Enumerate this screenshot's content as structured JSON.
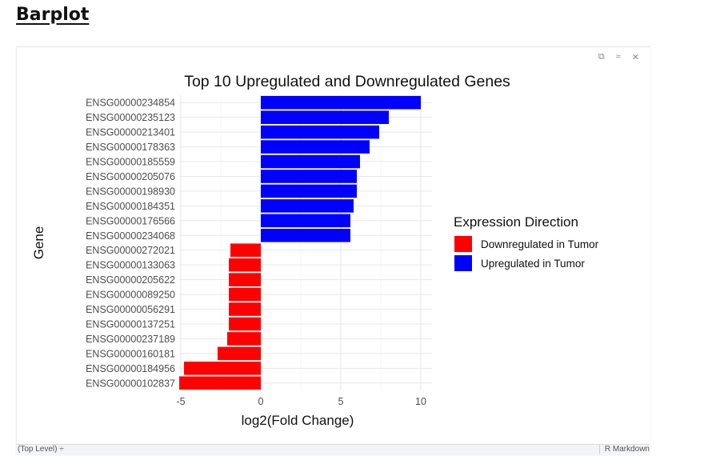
{
  "page": {
    "heading": "Barplot"
  },
  "toolbar": {
    "icons": [
      "copy-icon",
      "collapse-icon",
      "close-icon"
    ],
    "glyphs": [
      "⧉",
      "≈",
      "✕"
    ]
  },
  "statusbar": {
    "left": "(Top Level) ÷",
    "right": "R Markdown"
  },
  "chart_data": {
    "type": "bar",
    "orientation": "horizontal",
    "title": "Top 10 Upregulated and Downregulated Genes",
    "xlabel": "log2(Fold Change)",
    "ylabel": "Gene",
    "xlim": [
      -5.1,
      10.7
    ],
    "xticks": [
      -5,
      0,
      5,
      10
    ],
    "grid": true,
    "legend": {
      "title": "Expression Direction",
      "position": "right",
      "entries": [
        {
          "name": "Downregulated in Tumor",
          "color": "#ff0000"
        },
        {
          "name": "Upregulated in Tumor",
          "color": "#0000ff"
        }
      ]
    },
    "categories": [
      "ENSG00000234854",
      "ENSG00000235123",
      "ENSG00000213401",
      "ENSG00000178363",
      "ENSG00000185559",
      "ENSG00000205076",
      "ENSG00000198930",
      "ENSG00000184351",
      "ENSG00000176566",
      "ENSG00000234068",
      "ENSG00000272021",
      "ENSG00000133063",
      "ENSG00000205622",
      "ENSG00000089250",
      "ENSG00000056291",
      "ENSG00000137251",
      "ENSG00000237189",
      "ENSG00000160181",
      "ENSG00000184956",
      "ENSG00000102837"
    ],
    "values": [
      10.0,
      8.0,
      7.4,
      6.8,
      6.2,
      6.0,
      6.0,
      5.8,
      5.6,
      5.6,
      -1.9,
      -2.0,
      -2.0,
      -2.0,
      -2.0,
      -2.0,
      -2.1,
      -2.7,
      -4.8,
      -5.1
    ],
    "groups": [
      "up",
      "up",
      "up",
      "up",
      "up",
      "up",
      "up",
      "up",
      "up",
      "up",
      "down",
      "down",
      "down",
      "down",
      "down",
      "down",
      "down",
      "down",
      "down",
      "down"
    ]
  }
}
